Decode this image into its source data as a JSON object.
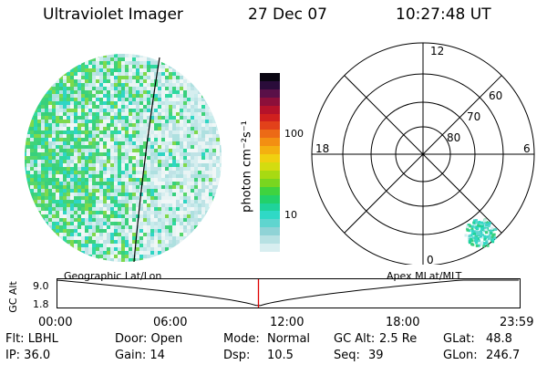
{
  "header": {
    "instrument": "Ultraviolet Imager",
    "date": "27 Dec 07",
    "time": "10:27:48 UT"
  },
  "colorbar": {
    "label": "photon cm⁻²s⁻¹",
    "tick_100": "100",
    "tick_10": "10",
    "colors": [
      "#d8eef0",
      "#b7e1e3",
      "#8fd3d6",
      "#5fd5cf",
      "#2fd9c6",
      "#1fd39a",
      "#22d16a",
      "#3fd33f",
      "#79d61f",
      "#a8da12",
      "#d3dc10",
      "#f0d010",
      "#f4b010",
      "#f38f12",
      "#ec6a16",
      "#e2411a",
      "#d0201e",
      "#b5122a",
      "#8c0f3a",
      "#5a1048",
      "#2a0c3a",
      "#0a0612"
    ]
  },
  "polar": {
    "labels": {
      "t12": "12",
      "t18": "18",
      "t6": "6",
      "t0": "0",
      "l60": "60",
      "l70": "70",
      "l80": "80"
    }
  },
  "timeline": {
    "left_label": "Geographic Lat/Lon",
    "right_label": "Apex MLat/MLT",
    "axis_label": "GC Alt",
    "y_top": "9.0",
    "y_bottom": "1.8",
    "ticks": [
      "00:00",
      "06:00",
      "12:00",
      "18:00",
      "23:59"
    ],
    "current_time_hours": 10.46
  },
  "footer": {
    "flt": "Flt: LBHL",
    "ip": "IP: 36.0",
    "door": "Door: Open",
    "gain": "Gain: 14",
    "mode_label": "Mode:",
    "mode_value": "Normal",
    "dsp_label": "Dsp:",
    "dsp_value": "10.5",
    "gcalt_label": "GC Alt:",
    "gcalt_value": "2.5 Re",
    "seq_label": "Seq:",
    "seq_value": "39",
    "glat_label": "GLat:",
    "glat_value": "48.8",
    "glon_label": "GLon:",
    "glon_value": "246.7"
  }
}
